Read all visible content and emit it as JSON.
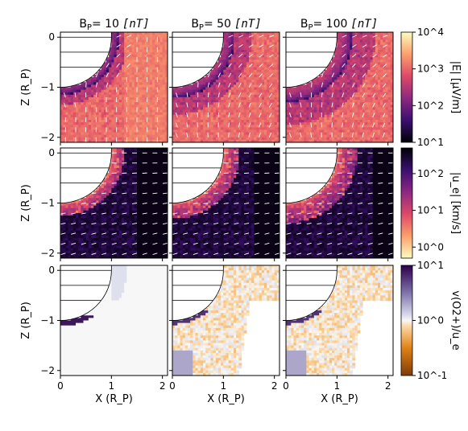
{
  "chart_data": {
    "type": "heatmap",
    "columns": [
      {
        "label": "B",
        "sub": "P",
        "value": "= 10",
        "unit": "[nT]"
      },
      {
        "label": "B",
        "sub": "P",
        "value": "= 50",
        "unit": "[nT]"
      },
      {
        "label": "B",
        "sub": "P",
        "value": "= 100",
        "unit": "[nT]"
      }
    ],
    "xlabel": "X (R_P)",
    "ylabel": "Z (R_P)",
    "xlim": [
      0,
      2.1
    ],
    "ylim": [
      -2.1,
      0.1
    ],
    "xticks": [
      0,
      1,
      2
    ],
    "yticks": [
      0,
      -1,
      -2
    ],
    "rows": [
      {
        "quantity": "|E|",
        "colorbar_label": "|E| [µV/m]",
        "colormap": "magma",
        "scale": "log",
        "range": [
          10,
          10000
        ],
        "tick_labels": [
          "10^1",
          "10^2",
          "10^3",
          "10^4"
        ],
        "has_arrows": true
      },
      {
        "quantity": "|u_e|",
        "colorbar_label": "|u_e| [km/s]",
        "colormap": "magma_r",
        "scale": "log",
        "range": [
          0.5,
          500
        ],
        "tick_labels": [
          "10^0",
          "10^1",
          "10^2"
        ],
        "has_arrows": true
      },
      {
        "quantity": "v(O2+)/u_e",
        "colorbar_label": "v(O2+)/u_e",
        "colormap": "PuOr",
        "scale": "log",
        "range": [
          0.1,
          10
        ],
        "tick_labels": [
          "10^-1",
          "10^0",
          "10^1"
        ],
        "has_arrows": false
      }
    ]
  }
}
